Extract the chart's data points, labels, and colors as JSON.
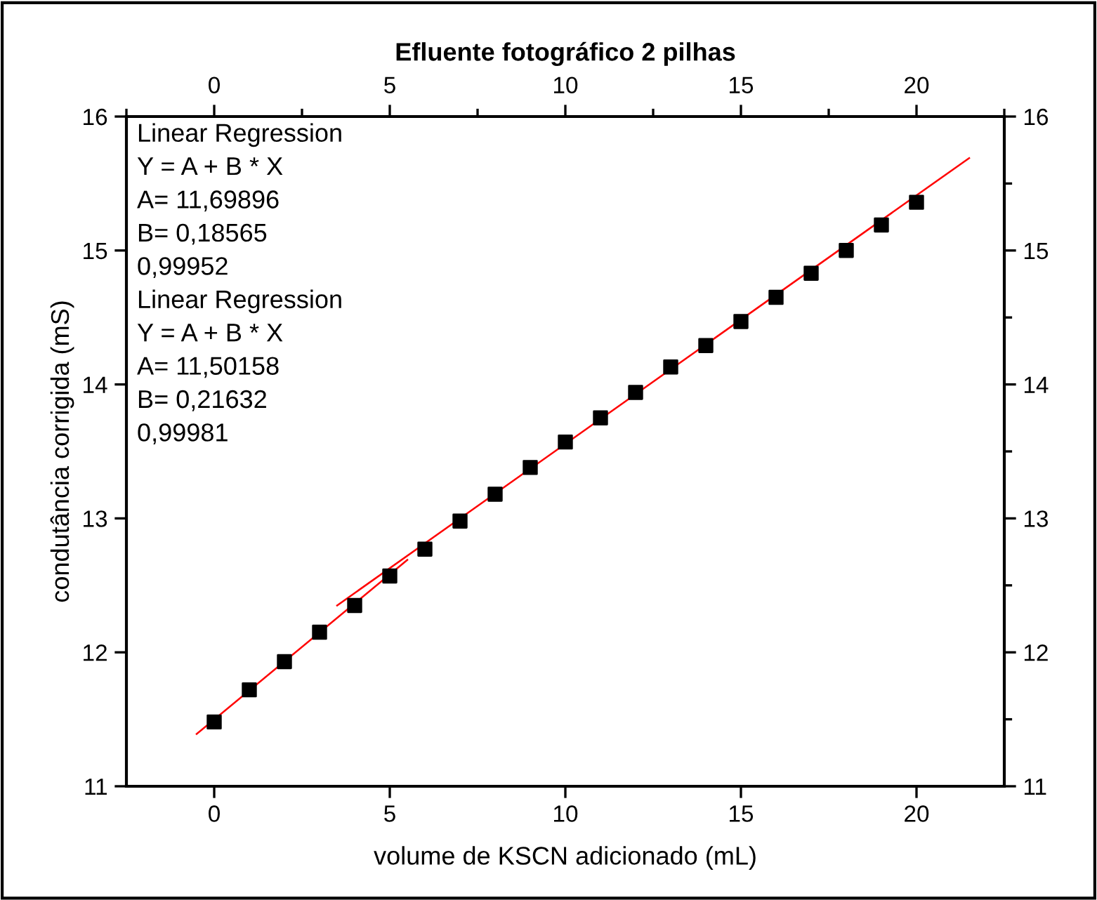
{
  "chart_data": {
    "type": "scatter",
    "title": "Efluente fotográfico 2 pilhas",
    "xlabel": "volume de KSCN adicionado (mL)",
    "ylabel": "condutância corrigida (mS)",
    "xlim": [
      -2.5,
      22.5
    ],
    "xticks": [
      0,
      5,
      10,
      15,
      20
    ],
    "x2lim": [
      -2.5,
      22.5
    ],
    "x2ticks": [
      0,
      5,
      10,
      15,
      20
    ],
    "ylim": [
      11,
      16
    ],
    "yticks": [
      11,
      12,
      13,
      14,
      15,
      16
    ],
    "y2lim": [
      11,
      16
    ],
    "y2ticks": [
      11,
      12,
      13,
      14,
      15,
      16
    ],
    "grid": false,
    "legend": false,
    "series": [
      {
        "marker": "square",
        "color": "#000000",
        "x": [
          0,
          1,
          2,
          3,
          4,
          5,
          6,
          7,
          8,
          9,
          10,
          11,
          12,
          13,
          14,
          15,
          16,
          17,
          18,
          19,
          20
        ],
        "values": [
          11.48,
          11.72,
          11.93,
          12.15,
          12.35,
          12.57,
          12.77,
          12.98,
          13.18,
          13.38,
          13.57,
          13.75,
          13.94,
          14.13,
          14.29,
          14.47,
          14.65,
          14.83,
          15.0,
          15.19,
          15.36
        ]
      },
      {
        "type": "line",
        "color": "#ff0000",
        "x": [
          3.5,
          21.5
        ],
        "values": [
          12.35,
          15.69
        ]
      },
      {
        "type": "line",
        "color": "#ff0000",
        "x": [
          -0.5,
          5.5
        ],
        "values": [
          11.39,
          12.69
        ]
      }
    ],
    "annotations": [
      "Linear Regression",
      "Y = A + B * X",
      "A= 11,69896",
      "B= 0,18565",
      "0,99952",
      "Linear Regression",
      "Y = A + B * X",
      "A= 11,50158",
      "B= 0,21632",
      "0,99981"
    ]
  }
}
